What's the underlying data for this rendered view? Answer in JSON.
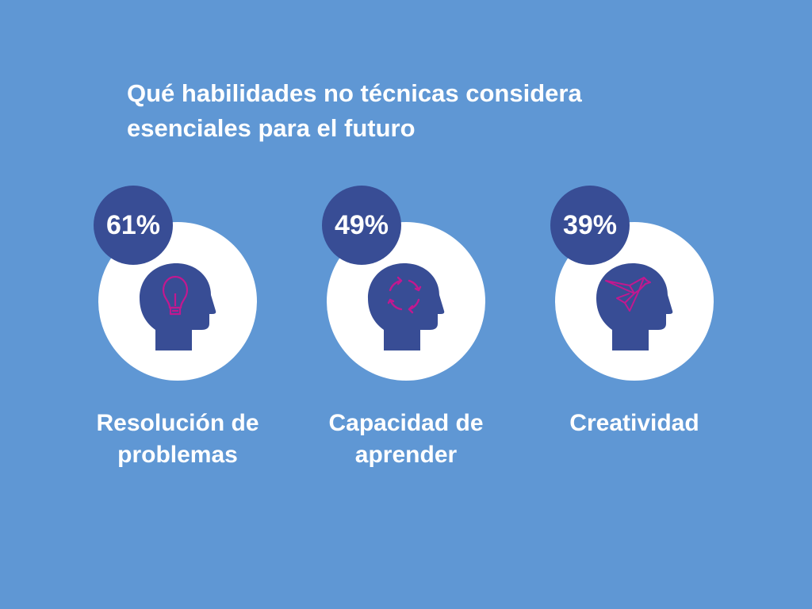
{
  "title": {
    "line1": "Qué habilidades no técnicas considera",
    "line2": "esenciales para el futuro"
  },
  "colors": {
    "background": "#5f97d4",
    "badge": "#384d95",
    "head": "#384d95",
    "icon_stroke": "#c2188f",
    "disc": "#ffffff",
    "text": "#ffffff"
  },
  "items": [
    {
      "percent": "61%",
      "label_line1": "Resolución de",
      "label_line2": "problemas",
      "icon": "lightbulb-icon"
    },
    {
      "percent": "49%",
      "label_line1": "Capacidad de",
      "label_line2": "aprender",
      "icon": "cycle-arrows-icon"
    },
    {
      "percent": "39%",
      "label_line1": "Creatividad",
      "label_line2": "",
      "icon": "origami-bird-icon"
    }
  ]
}
